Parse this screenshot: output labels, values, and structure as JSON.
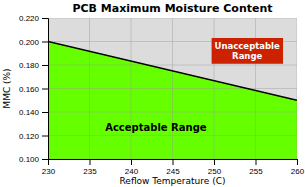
{
  "chart_data": {
    "type": "area",
    "title": "PCB Maximum Moisture Content",
    "x_label": "Reflow Temperature (C)",
    "y_label": "MMC (%)",
    "x": [
      230,
      260
    ],
    "values": [
      0.2,
      0.15
    ],
    "color": "#66ff00",
    "xlim": [
      230,
      260
    ],
    "ylim": [
      0.1,
      0.22
    ],
    "xticks": [
      230,
      235,
      240,
      245,
      250,
      255,
      260
    ],
    "yticks": [
      {
        "value": 0.1,
        "label": "0.100"
      },
      {
        "value": 0.12,
        "label": "0.120"
      },
      {
        "value": 0.14,
        "label": "0.140"
      },
      {
        "value": 0.16,
        "label": "0.160"
      },
      {
        "value": 0.18,
        "label": "0.180"
      },
      {
        "value": 0.2,
        "label": "0.200"
      },
      {
        "value": 0.22,
        "label": "0.220"
      }
    ],
    "grid": true,
    "annotations": [
      {
        "text": "Acceptable Range",
        "x": 243,
        "y": 0.127
      },
      {
        "text": "Unacceptable\nRange",
        "x": 254,
        "y": 0.192,
        "color": "#cc2200"
      }
    ]
  }
}
